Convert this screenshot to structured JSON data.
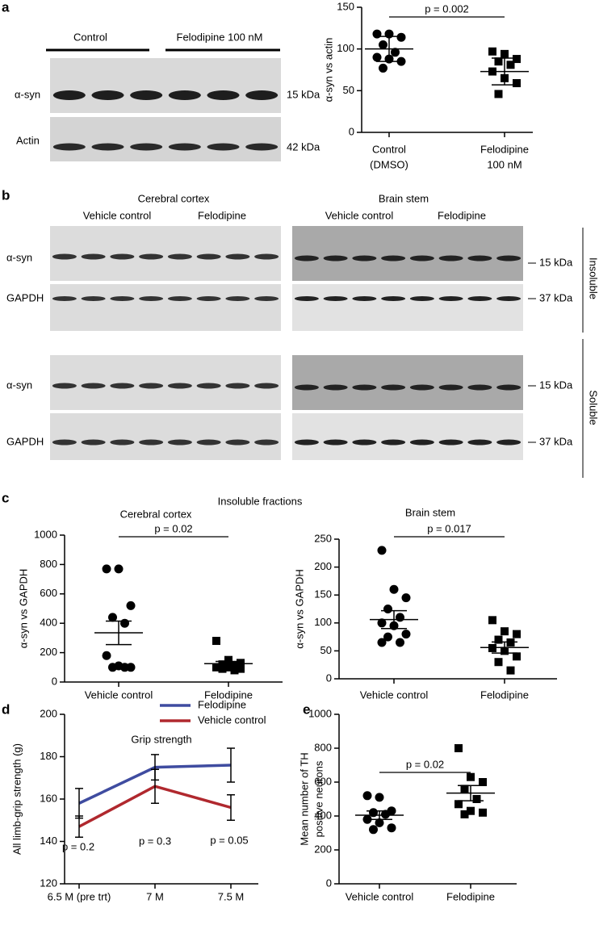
{
  "panel_labels": [
    "a",
    "b",
    "c",
    "d",
    "e"
  ],
  "blot_a": {
    "groups": [
      "Control",
      "Felodipine 100 nM"
    ],
    "rows": [
      {
        "label": "α-syn",
        "size": "15 kDa"
      },
      {
        "label": "Actin",
        "size": "42 kDa"
      }
    ]
  },
  "blot_b": {
    "regions": [
      {
        "title": "Cerebral cortex",
        "groups": [
          "Vehicle control",
          "Felodipine"
        ]
      },
      {
        "title": "Brain stem",
        "groups": [
          "Vehicle control",
          "Felodipine"
        ]
      }
    ],
    "rows": [
      {
        "label": "α-syn",
        "size": "15 kDa"
      },
      {
        "label": "GAPDH",
        "size": "37 kDa"
      },
      {
        "label": "α-syn",
        "size": "15 kDa"
      },
      {
        "label": "GAPDH",
        "size": "37 kDa"
      }
    ],
    "fractions": [
      "Insoluble",
      "Soluble"
    ]
  },
  "panel_c_title": "Insoluble fractions",
  "chart_data": [
    {
      "type": "dotplot",
      "ylabel": "α-syn vs actin",
      "categories": [
        [
          "Control",
          "(DMSO)"
        ],
        [
          "Felodipine",
          "100 nM"
        ]
      ],
      "markers": [
        "circle",
        "square"
      ],
      "color": "#000000",
      "groups": [
        {
          "values": [
            118,
            118,
            114,
            105,
            96,
            90,
            88,
            85,
            77
          ],
          "mean": 100,
          "error": 15
        },
        {
          "values": [
            97,
            94,
            88,
            85,
            81,
            73,
            65,
            59,
            46
          ],
          "mean": 73,
          "error": 16
        }
      ],
      "ylim": [
        0,
        150
      ],
      "yticks": [
        0,
        50,
        100,
        150
      ],
      "annotation": "p = 0.002"
    },
    {
      "type": "dotplot",
      "title": "Cerebral cortex",
      "ylabel": "α-syn vs GAPDH",
      "categories": [
        [
          "Vehicle control"
        ],
        [
          "Felodipine"
        ]
      ],
      "markers": [
        "circle",
        "square"
      ],
      "color": "#000000",
      "groups": [
        {
          "values": [
            770,
            770,
            520,
            440,
            400,
            180,
            110,
            100,
            100,
            100
          ],
          "mean": 335,
          "error": 80
        },
        {
          "values": [
            280,
            150,
            130,
            120,
            110,
            100,
            100,
            90,
            90,
            80
          ],
          "mean": 125,
          "error": 15
        }
      ],
      "ylim": [
        0,
        1000
      ],
      "yticks": [
        0,
        200,
        400,
        600,
        800,
        1000
      ],
      "annotation": "p = 0.02"
    },
    {
      "type": "dotplot",
      "title": "Brain stem",
      "ylabel": "α-syn vs GAPDH",
      "categories": [
        [
          "Vehicle control"
        ],
        [
          "Felodipine"
        ]
      ],
      "markers": [
        "circle",
        "square"
      ],
      "color": "#000000",
      "groups": [
        {
          "values": [
            230,
            160,
            145,
            125,
            110,
            100,
            95,
            80,
            75,
            65,
            65
          ],
          "mean": 106,
          "error": 16
        },
        {
          "values": [
            105,
            85,
            80,
            70,
            65,
            55,
            50,
            40,
            30,
            15
          ],
          "mean": 56,
          "error": 10
        }
      ],
      "ylim": [
        0,
        250
      ],
      "yticks": [
        0,
        50,
        100,
        150,
        200,
        250
      ],
      "annotation": "p = 0.017"
    },
    {
      "type": "line",
      "title": "Grip strength",
      "ylabel": "All limb-grip strength (g)",
      "categories": [
        "6.5 M (pre trt)",
        "7 M",
        "7.5 M"
      ],
      "series": [
        {
          "name": "Felodipine",
          "color": "#3f4ca0",
          "values": [
            158,
            175,
            176
          ],
          "errors": [
            7,
            6,
            8
          ]
        },
        {
          "name": "Vehicle control",
          "color": "#b0282e",
          "values": [
            147,
            166,
            156
          ],
          "errors": [
            5,
            8,
            6
          ]
        }
      ],
      "ylim": [
        120,
        200
      ],
      "yticks": [
        120,
        140,
        160,
        180,
        200
      ],
      "annotations": [
        "p = 0.2",
        "p = 0.3",
        "p = 0.05"
      ],
      "legend": "top"
    },
    {
      "type": "dotplot",
      "ylabel": [
        "Mean number of TH",
        "positive neurons"
      ],
      "categories": [
        [
          "Vehicle control"
        ],
        [
          "Felodipine"
        ]
      ],
      "markers": [
        "circle",
        "square"
      ],
      "color": "#000000",
      "groups": [
        {
          "values": [
            520,
            510,
            430,
            420,
            410,
            380,
            360,
            330,
            320
          ],
          "mean": 405,
          "error": 25
        },
        {
          "values": [
            800,
            630,
            600,
            560,
            500,
            470,
            430,
            420,
            410
          ],
          "mean": 535,
          "error": 45
        }
      ],
      "ylim": [
        0,
        1000
      ],
      "yticks": [
        0,
        200,
        400,
        600,
        800,
        1000
      ],
      "annotation": "p = 0.02"
    }
  ]
}
